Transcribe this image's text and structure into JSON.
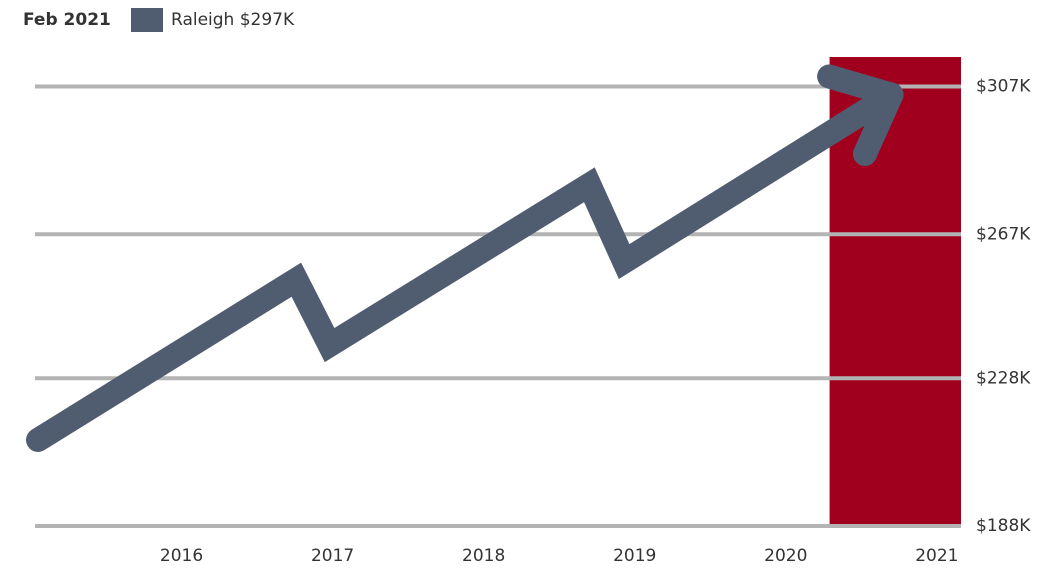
{
  "chart_data": {
    "type": "line",
    "legend_title": "Feb 2021",
    "x": [
      2015.05,
      2016.76,
      2016.98,
      2018.7,
      2018.93,
      2020.7
    ],
    "series": [
      {
        "name": "Raleigh $297K",
        "color": "#505d70",
        "values": [
          211300,
          254700,
          237000,
          280400,
          259600,
          304800
        ]
      }
    ],
    "xlim": [
      2015.03,
      2021.16
    ],
    "xticks": [
      2016,
      2017,
      2018,
      2019,
      2020,
      2021
    ],
    "ylim": [
      188000,
      315000
    ],
    "yticks": [
      {
        "value": 188000,
        "label": "$188K"
      },
      {
        "value": 228000,
        "label": "$228K"
      },
      {
        "value": 267000,
        "label": "$267K"
      },
      {
        "value": 307000,
        "label": "$307K"
      }
    ],
    "highlight": {
      "x0": 2020.29,
      "x1": 2021.16,
      "color": "#a0001e"
    },
    "grid": true
  }
}
